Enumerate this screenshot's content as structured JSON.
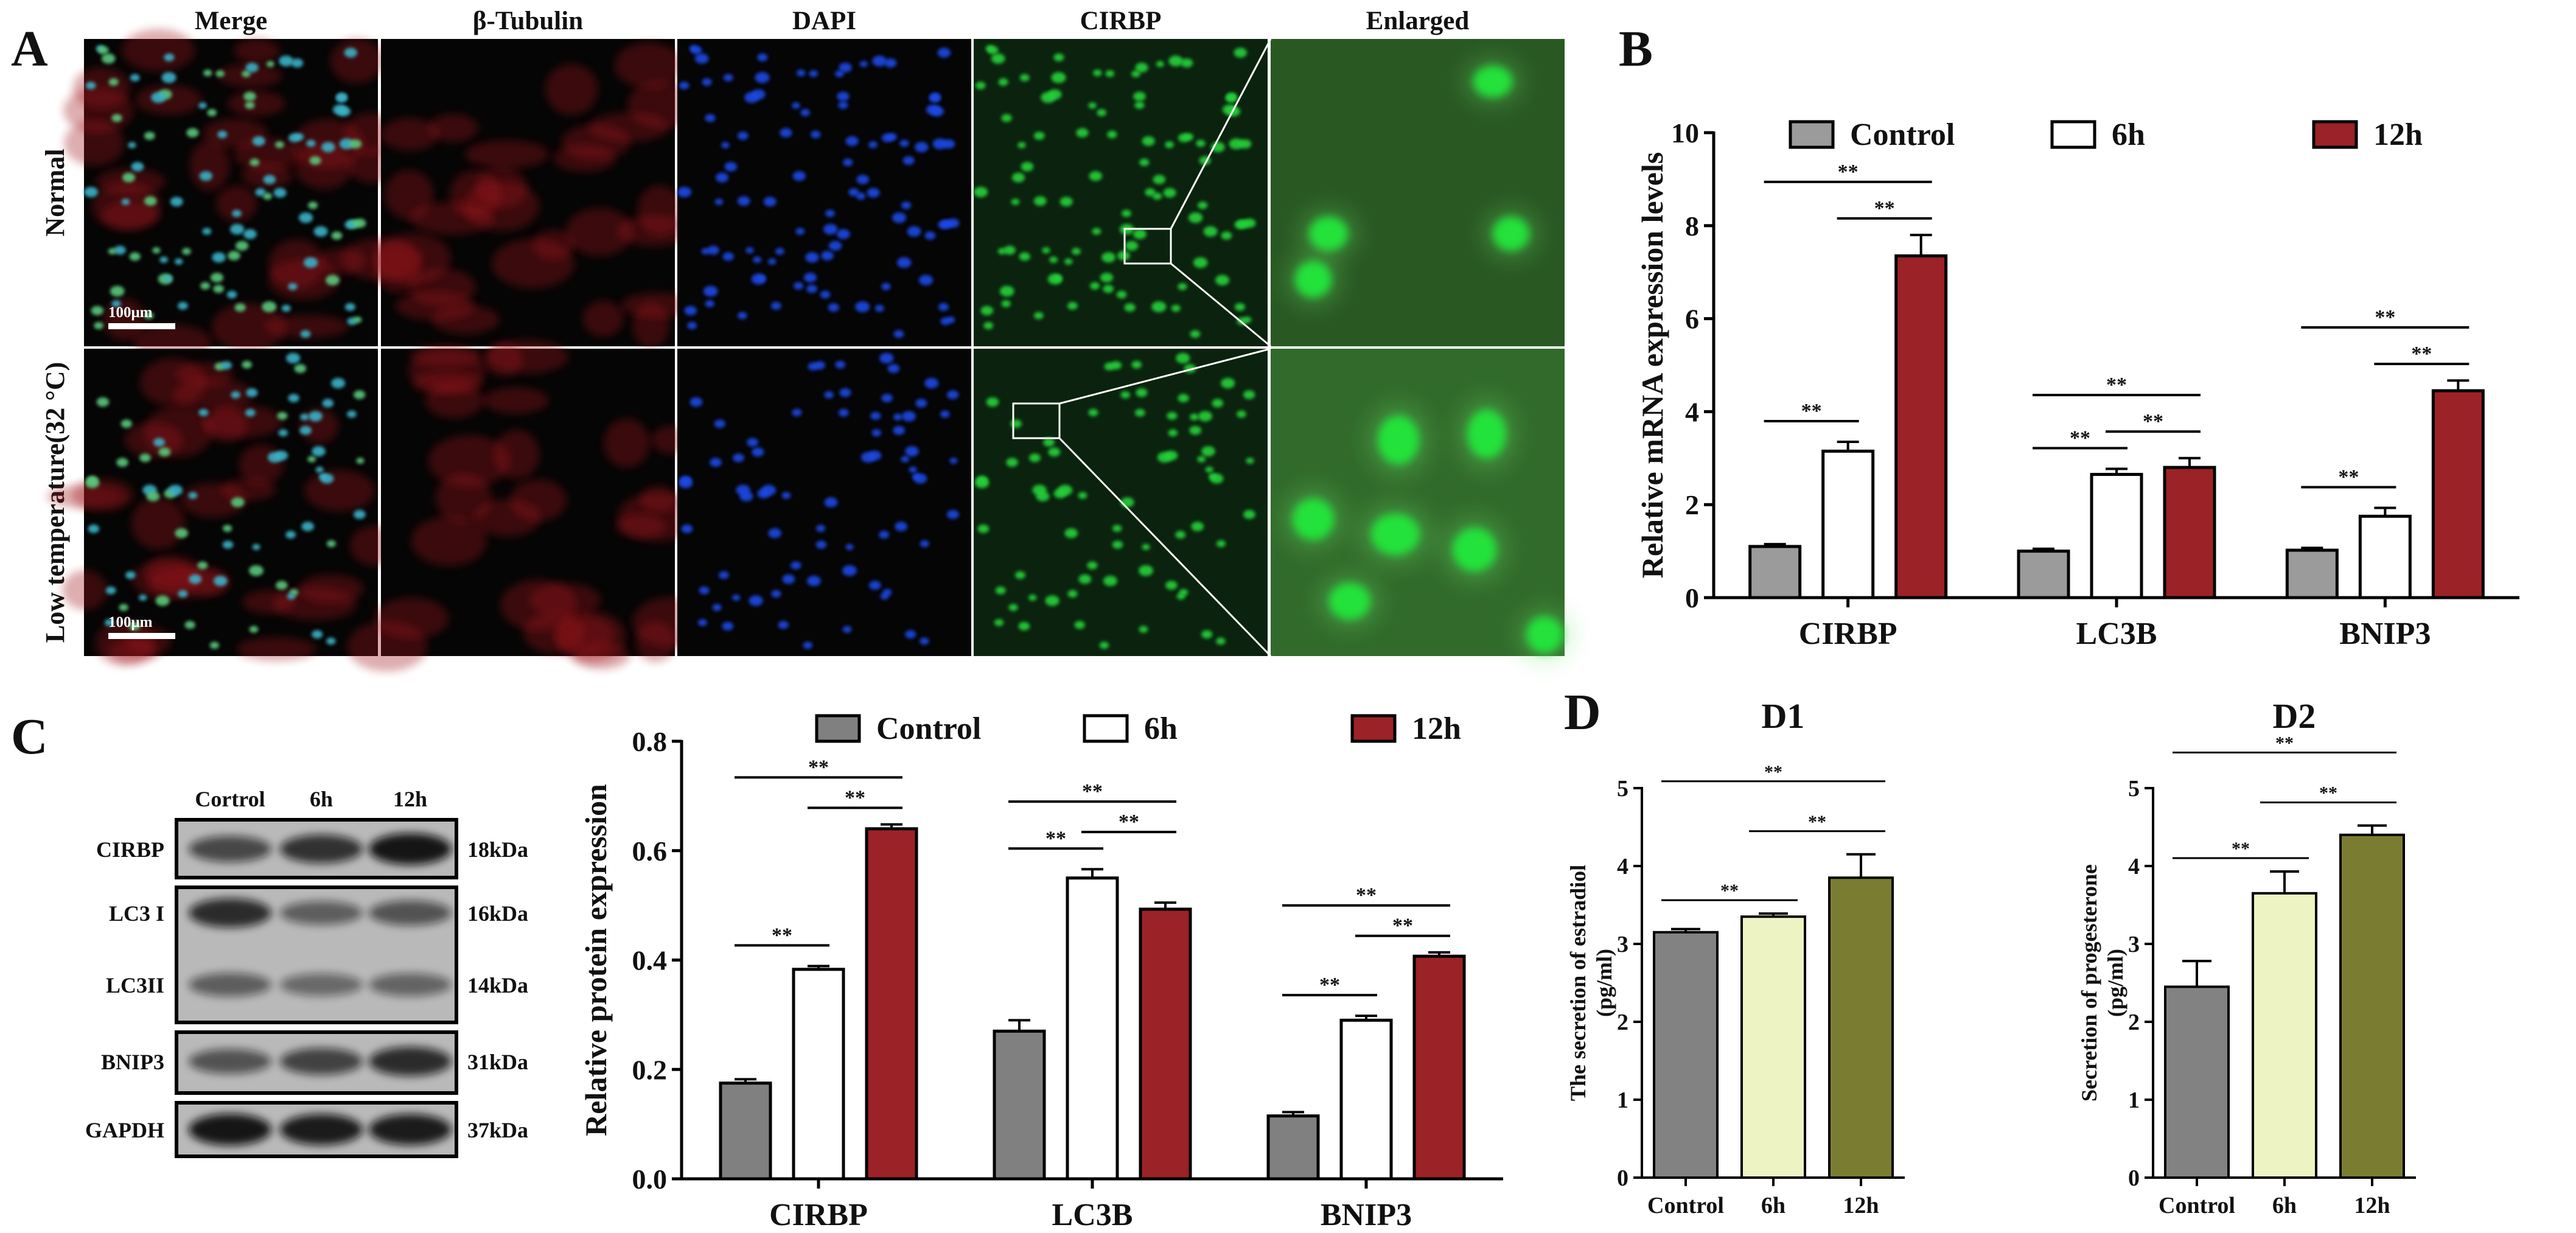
{
  "panel_labels": {
    "a": "A",
    "b": "B",
    "c": "C",
    "d": "D"
  },
  "microscopy": {
    "columns": [
      "Merge",
      "β-Tubulin",
      "DAPI",
      "CIRBP",
      "Enlarged"
    ],
    "rows": [
      "Normal",
      "Low temperature(32 °C)"
    ],
    "scale_bar_label": "100μm",
    "colors": {
      "merge_bg": "#1c1f22",
      "tubulin": "#d11a1a",
      "dapi": "#1f49e6",
      "cirbp": "#26d23a"
    }
  },
  "western_blot": {
    "lane_labels": [
      "Cortrol",
      "6h",
      "12h"
    ],
    "rows": [
      {
        "protein": "CIRBP",
        "size": "18kDa"
      },
      {
        "protein": "LC3 I",
        "size": "16kDa"
      },
      {
        "protein": "LC3II",
        "size": "14kDa"
      },
      {
        "protein": "BNIP3",
        "size": "31kDa"
      },
      {
        "protein": "GAPDH",
        "size": "37kDa"
      }
    ]
  },
  "significance_label": "**",
  "chart_data": [
    {
      "id": "B",
      "type": "bar",
      "title": "",
      "xlabel": "",
      "ylabel": "Relative mRNA expression levels",
      "ylim": [
        0,
        10
      ],
      "yticks": [
        0,
        2,
        4,
        6,
        8,
        10
      ],
      "categories": [
        "CIRBP",
        "LC3B",
        "BNIP3"
      ],
      "legend": "top",
      "series": [
        {
          "name": "Control",
          "color": "#9b9b9b",
          "values": [
            1.1,
            1.0,
            1.02
          ],
          "errors": [
            0.05,
            0.05,
            0.05
          ]
        },
        {
          "name": "6h",
          "color": "#ffffff",
          "values": [
            3.15,
            2.65,
            1.75
          ],
          "errors": [
            0.2,
            0.12,
            0.18
          ]
        },
        {
          "name": "12h",
          "color": "#9b2226",
          "values": [
            7.35,
            2.8,
            4.45
          ],
          "errors": [
            0.45,
            0.2,
            0.22
          ]
        }
      ]
    },
    {
      "id": "C",
      "type": "bar",
      "title": "",
      "xlabel": "",
      "ylabel": "Relative protein expression",
      "ylim": [
        0,
        0.8
      ],
      "yticks": [
        0.0,
        0.2,
        0.4,
        0.6,
        0.8
      ],
      "categories": [
        "CIRBP",
        "LC3B",
        "BNIP3"
      ],
      "legend": "top",
      "series": [
        {
          "name": "Control",
          "color": "#808080",
          "values": [
            0.175,
            0.27,
            0.115
          ],
          "errors": [
            0.007,
            0.02,
            0.007
          ]
        },
        {
          "name": "6h",
          "color": "#ffffff",
          "values": [
            0.383,
            0.55,
            0.29
          ],
          "errors": [
            0.006,
            0.016,
            0.008
          ]
        },
        {
          "name": "12h",
          "color": "#9b2226",
          "values": [
            0.64,
            0.493,
            0.407
          ],
          "errors": [
            0.008,
            0.012,
            0.007
          ]
        }
      ]
    },
    {
      "id": "D1",
      "type": "bar",
      "title": "D1",
      "xlabel": "",
      "ylabel": "The secretion of estradiol (pg/ml)",
      "ylim": [
        0,
        5
      ],
      "yticks": [
        0,
        1,
        2,
        3,
        4,
        5
      ],
      "categories": [
        "Control",
        "6h",
        "12h"
      ],
      "colors": [
        "#828282",
        "#eef3c4",
        "#7a7d31"
      ],
      "values": [
        3.15,
        3.35,
        3.85
      ],
      "errors": [
        0.04,
        0.04,
        0.3
      ]
    },
    {
      "id": "D2",
      "type": "bar",
      "title": "D2",
      "xlabel": "",
      "ylabel": "Secretion of progesterone (pg/ml)",
      "ylim": [
        0,
        5
      ],
      "yticks": [
        0,
        1,
        2,
        3,
        4,
        5
      ],
      "categories": [
        "Control",
        "6h",
        "12h"
      ],
      "colors": [
        "#828282",
        "#eef3c4",
        "#7a7d31"
      ],
      "values": [
        2.45,
        3.65,
        4.4
      ],
      "errors": [
        0.33,
        0.28,
        0.12
      ]
    }
  ]
}
